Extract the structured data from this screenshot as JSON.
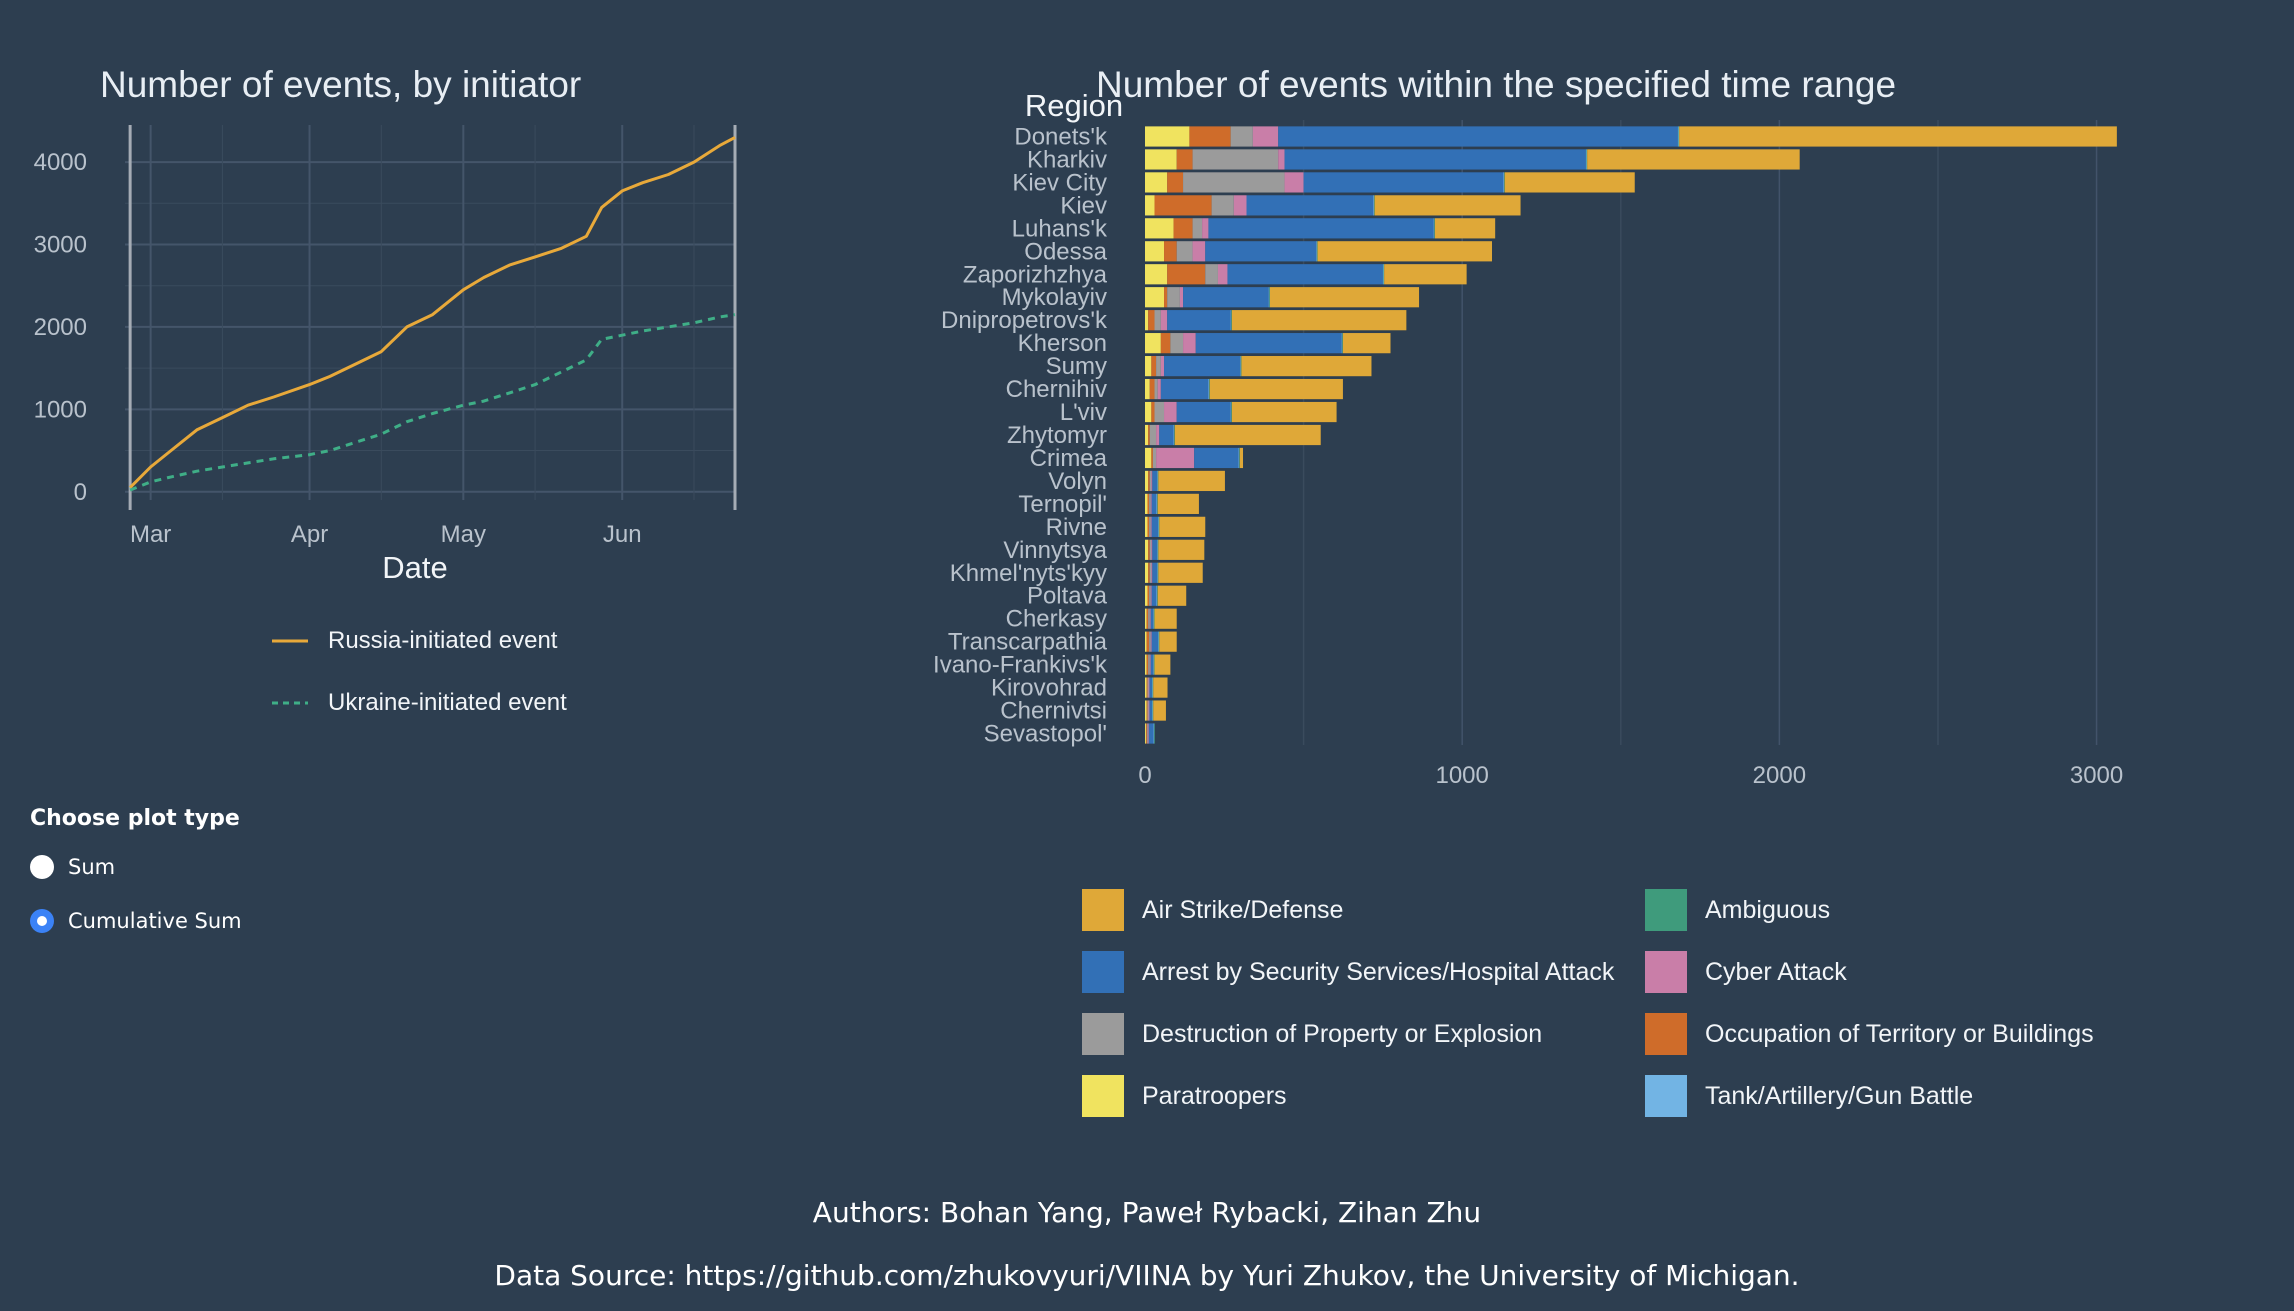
{
  "line_chart": {
    "title": "Number of events, by initiator",
    "xlabel": "Date",
    "legend": [
      {
        "label": "Russia-initiated event",
        "color": "#e8a93a",
        "dash": "solid"
      },
      {
        "label": "Ukraine-initiated event",
        "color": "#3fae87",
        "dash": "dashed"
      }
    ]
  },
  "bar_chart": {
    "title": "Number of events within the specified time range",
    "ylabel": "Region"
  },
  "controls": {
    "group_label": "Choose plot type",
    "options": [
      {
        "label": "Sum",
        "selected": false
      },
      {
        "label": "Cumulative Sum",
        "selected": true
      }
    ]
  },
  "footer": {
    "authors": "Authors: Bohan Yang, Paweł Rybacki, Zihan Zhu",
    "source": "Data Source: https://github.com/zhukovyuri/VIINA by Yuri Zhukov, the University of Michigan."
  },
  "chart_data": [
    {
      "type": "line",
      "title": "Number of events, by initiator",
      "xlabel": "Date",
      "ylabel": "",
      "x_ticks": [
        "Mar",
        "Apr",
        "May",
        "Jun"
      ],
      "y_ticks": [
        0,
        1000,
        2000,
        3000,
        4000
      ],
      "xlim": [
        "2022-02-24",
        "2022-06-23"
      ],
      "ylim": [
        -100,
        4450
      ],
      "grid": true,
      "legend_position": "bottom",
      "x": [
        "2022-02-25",
        "2022-03-01",
        "2022-03-05",
        "2022-03-10",
        "2022-03-15",
        "2022-03-20",
        "2022-03-25",
        "2022-04-01",
        "2022-04-05",
        "2022-04-10",
        "2022-04-15",
        "2022-04-20",
        "2022-04-25",
        "2022-05-01",
        "2022-05-05",
        "2022-05-10",
        "2022-05-15",
        "2022-05-20",
        "2022-05-25",
        "2022-05-28",
        "2022-06-01",
        "2022-06-05",
        "2022-06-10",
        "2022-06-15",
        "2022-06-20",
        "2022-06-23"
      ],
      "series": [
        {
          "name": "Russia-initiated event",
          "color": "#e8a93a",
          "values": [
            50,
            300,
            500,
            750,
            900,
            1050,
            1150,
            1300,
            1400,
            1550,
            1700,
            2000,
            2150,
            2450,
            2600,
            2750,
            2850,
            2950,
            3100,
            3450,
            3650,
            3750,
            3850,
            4000,
            4200,
            4300
          ]
        },
        {
          "name": "Ukraine-initiated event",
          "color": "#3fae87",
          "values": [
            20,
            120,
            180,
            250,
            300,
            350,
            400,
            450,
            500,
            600,
            700,
            850,
            950,
            1050,
            1100,
            1200,
            1300,
            1450,
            1600,
            1850,
            1900,
            1950,
            2000,
            2050,
            2120,
            2150
          ]
        }
      ]
    },
    {
      "type": "bar",
      "orientation": "horizontal",
      "stacked": true,
      "title": "Number of events within the specified time range",
      "ylabel": "Region",
      "x_ticks": [
        0,
        1000,
        2000,
        3000
      ],
      "xlim": [
        0,
        3200
      ],
      "grid": true,
      "legend_position": "bottom",
      "categories": [
        "Donets'k",
        "Kharkiv",
        "Kiev City",
        "Kiev",
        "Luhans'k",
        "Odessa",
        "Zaporizhzhya",
        "Mykolayiv",
        "Dnipropetrovs'k",
        "Kherson",
        "Sumy",
        "Chernihiv",
        "L'viv",
        "Zhytomyr",
        "Crimea",
        "Volyn",
        "Ternopil'",
        "Rivne",
        "Vinnytsya",
        "Khmel'nyts'kyy",
        "Poltava",
        "Cherkasy",
        "Transcarpathia",
        "Ivano-Frankivs'k",
        "Kirovohrad",
        "Chernivtsi",
        "Sevastopol'"
      ],
      "series": [
        {
          "name": "Paratroopers",
          "color": "#f0e35f",
          "values": [
            140,
            100,
            70,
            30,
            90,
            60,
            70,
            60,
            10,
            50,
            20,
            15,
            20,
            10,
            20,
            10,
            8,
            8,
            10,
            10,
            8,
            5,
            5,
            5,
            5,
            5,
            3
          ]
        },
        {
          "name": "Occupation of Territory or Buildings",
          "color": "#cf6c2a",
          "values": [
            130,
            50,
            50,
            180,
            60,
            40,
            120,
            10,
            20,
            30,
            15,
            15,
            10,
            5,
            5,
            5,
            5,
            5,
            5,
            5,
            5,
            5,
            8,
            5,
            3,
            3,
            3
          ]
        },
        {
          "name": "Destruction of Property or Explosion",
          "color": "#9b9b9b",
          "values": [
            70,
            270,
            320,
            70,
            30,
            50,
            40,
            40,
            20,
            40,
            15,
            10,
            30,
            20,
            10,
            5,
            5,
            5,
            5,
            5,
            5,
            5,
            5,
            5,
            3,
            3,
            3
          ]
        },
        {
          "name": "Cyber Attack",
          "color": "#c97ea8",
          "values": [
            80,
            20,
            60,
            40,
            20,
            40,
            30,
            10,
            20,
            40,
            10,
            10,
            40,
            10,
            120,
            3,
            3,
            3,
            3,
            3,
            3,
            3,
            3,
            3,
            3,
            3,
            3
          ]
        },
        {
          "name": "Arrest by Security Services/Hospital Attack",
          "color": "#3270b6",
          "values": [
            1260,
            950,
            630,
            400,
            710,
            350,
            490,
            270,
            200,
            460,
            240,
            150,
            170,
            45,
            140,
            15,
            15,
            20,
            15,
            15,
            15,
            8,
            20,
            8,
            8,
            8,
            15
          ]
        },
        {
          "name": "Tank/Artillery/Gun Battle",
          "color": "#72b4e4",
          "values": [
            2,
            2,
            2,
            2,
            2,
            2,
            2,
            2,
            2,
            2,
            2,
            2,
            2,
            2,
            2,
            2,
            2,
            2,
            2,
            2,
            2,
            2,
            2,
            2,
            2,
            2,
            2
          ]
        },
        {
          "name": "Ambiguous",
          "color": "#3f9b7c",
          "values": [
            2,
            2,
            2,
            2,
            2,
            2,
            2,
            2,
            2,
            2,
            2,
            2,
            2,
            2,
            2,
            2,
            2,
            2,
            2,
            2,
            2,
            2,
            2,
            2,
            2,
            2,
            2
          ]
        },
        {
          "name": "Air Strike/Defense",
          "color": "#dfa838",
          "values": [
            1380,
            670,
            410,
            460,
            190,
            550,
            260,
            470,
            550,
            150,
            410,
            420,
            330,
            460,
            10,
            210,
            130,
            145,
            145,
            140,
            90,
            70,
            55,
            50,
            45,
            40,
            0
          ]
        }
      ],
      "legend": [
        {
          "label": "Air Strike/Defense",
          "color": "#dfa838"
        },
        {
          "label": "Ambiguous",
          "color": "#3f9b7c"
        },
        {
          "label": "Arrest by Security Services/Hospital Attack",
          "color": "#3270b6"
        },
        {
          "label": "Cyber Attack",
          "color": "#c97ea8"
        },
        {
          "label": "Destruction of Property or Explosion",
          "color": "#9b9b9b"
        },
        {
          "label": "Occupation of Territory or Buildings",
          "color": "#cf6c2a"
        },
        {
          "label": "Paratroopers",
          "color": "#f0e35f"
        },
        {
          "label": "Tank/Artillery/Gun Battle",
          "color": "#72b4e4"
        }
      ]
    }
  ]
}
